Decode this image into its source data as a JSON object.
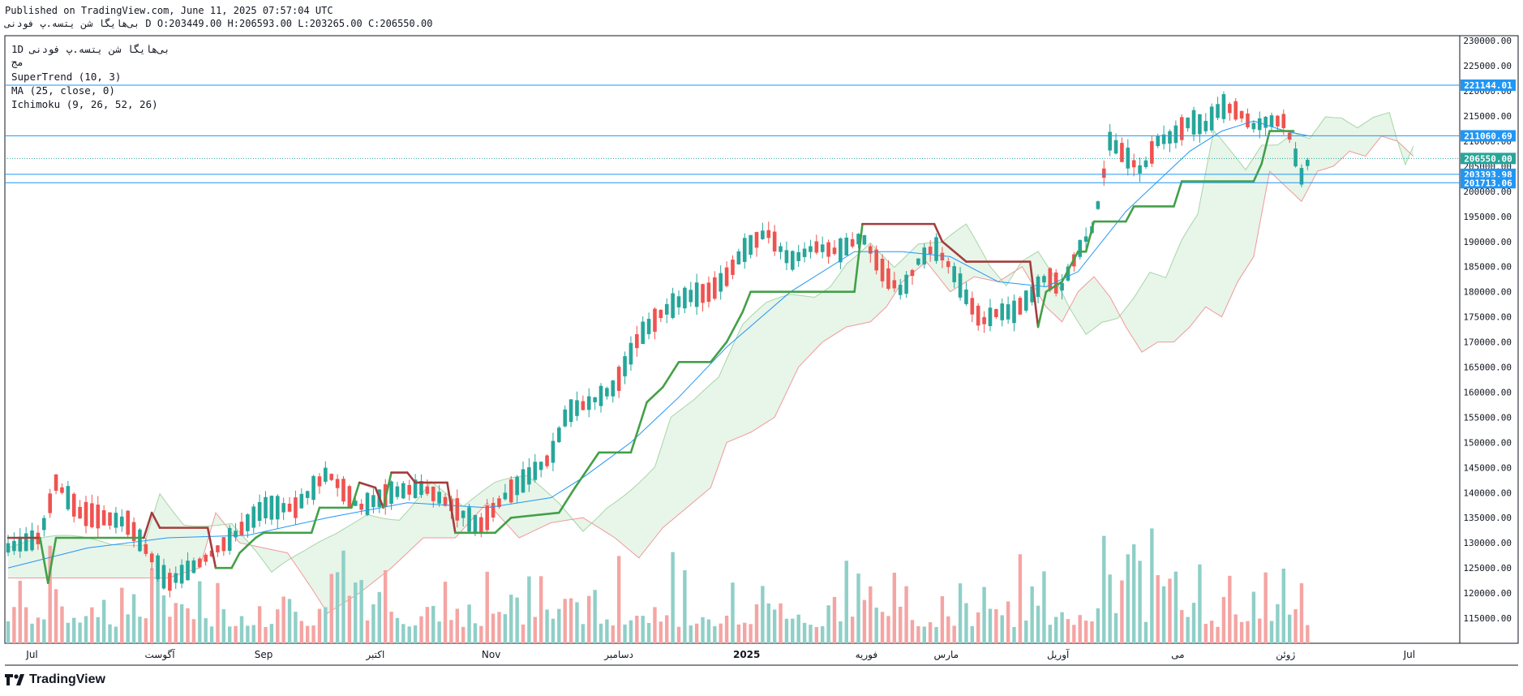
{
  "header": {
    "published": "Published on TradingView.com, June 11, 2025 07:57:04 UTC",
    "symbol": "بی‌هایگا شن یتسه.پ فودنی",
    "ohlc": "D O:203449.00 H:206593.00 L:203265.00 C:206550.00"
  },
  "legend": {
    "title": "1D  بی‌هایگا شن یتسه.پ فودنی",
    "sub": "مج",
    "ind1": "SuperTrend (10, 3)",
    "ind2": "MA (25, close, 0)",
    "ind3": "Ichimoku (9, 26, 52, 26)"
  },
  "brand": {
    "name": "TradingView"
  },
  "colors": {
    "up": "#26a69a",
    "down": "#ef5350",
    "supertrend_up": "#43a047",
    "supertrend_down": "#a33d3d",
    "ma": "#2196f3",
    "hline": "#2196f3",
    "cloud_up": "#e8f5e9",
    "cloud_down": "#fce4e4",
    "last": "#26a69a"
  },
  "chart_data": {
    "type": "candlestick",
    "title": "بی‌هایگا شن یتسه.پ فودنی",
    "timeframe": "1D",
    "ylim": [
      110000,
      231000
    ],
    "y_ticks": [
      230000,
      225000,
      220000,
      215000,
      210000,
      205000,
      200000,
      195000,
      190000,
      185000,
      180000,
      175000,
      170000,
      165000,
      160000,
      155000,
      150000,
      145000,
      140000,
      135000,
      130000,
      125000,
      120000,
      115000
    ],
    "x_labels": [
      "Jul",
      "آگوست",
      "Sep",
      "اکتبر",
      "Nov",
      "دسامبر",
      "2025",
      "فوریه",
      "مارس",
      "آوریل",
      "می",
      "ژوئن",
      "Jul"
    ],
    "x_label_days": [
      6,
      38,
      64,
      92,
      121,
      153,
      185,
      215,
      235,
      263,
      293,
      320,
      351
    ],
    "price_lines": [
      {
        "label": "221144.01",
        "value": 221144.01
      },
      {
        "label": "211060.69",
        "value": 211060.69
      },
      {
        "label": "203393.98",
        "value": 203393.98
      },
      {
        "label": "201713.06",
        "value": 201713.06
      }
    ],
    "last_price": {
      "label": "206550.00",
      "value": 206550.0
    },
    "ohlc_points": [
      [
        0,
        129000
      ],
      [
        8,
        131000
      ],
      [
        12,
        142000
      ],
      [
        18,
        136000
      ],
      [
        30,
        134000
      ],
      [
        36,
        127000
      ],
      [
        40,
        122000
      ],
      [
        48,
        126000
      ],
      [
        56,
        131000
      ],
      [
        64,
        137000
      ],
      [
        72,
        137000
      ],
      [
        80,
        144000
      ],
      [
        88,
        137000
      ],
      [
        96,
        140000
      ],
      [
        104,
        141000
      ],
      [
        112,
        137000
      ],
      [
        118,
        133000
      ],
      [
        124,
        139000
      ],
      [
        130,
        143000
      ],
      [
        136,
        147000
      ],
      [
        140,
        156000
      ],
      [
        146,
        158000
      ],
      [
        152,
        161000
      ],
      [
        158,
        171000
      ],
      [
        164,
        176000
      ],
      [
        170,
        179000
      ],
      [
        176,
        180000
      ],
      [
        180,
        183000
      ],
      [
        184,
        188000
      ],
      [
        190,
        192000
      ],
      [
        196,
        186000
      ],
      [
        202,
        189000
      ],
      [
        208,
        188000
      ],
      [
        214,
        191000
      ],
      [
        220,
        183000
      ],
      [
        224,
        180000
      ],
      [
        228,
        186000
      ],
      [
        232,
        189000
      ],
      [
        236,
        185000
      ],
      [
        240,
        179000
      ],
      [
        244,
        174000
      ],
      [
        248,
        176000
      ],
      [
        252,
        176000
      ],
      [
        256,
        179000
      ],
      [
        260,
        183000
      ],
      [
        264,
        181000
      ],
      [
        268,
        188000
      ],
      [
        272,
        193000
      ],
      [
        276,
        210000
      ],
      [
        280,
        207000
      ],
      [
        284,
        204000
      ],
      [
        288,
        210000
      ],
      [
        292,
        211000
      ],
      [
        296,
        214000
      ],
      [
        300,
        213000
      ],
      [
        304,
        217000
      ],
      [
        308,
        216000
      ],
      [
        312,
        213000
      ],
      [
        316,
        214000
      ],
      [
        320,
        214000
      ],
      [
        322,
        208000
      ],
      [
        324,
        203000
      ],
      [
        326,
        206550
      ]
    ],
    "supertrend": [
      [
        0,
        131000
      ],
      [
        8,
        131000
      ],
      [
        10,
        122000
      ],
      [
        12,
        131000
      ],
      [
        34,
        131000
      ],
      [
        36,
        136000
      ],
      [
        38,
        133000
      ],
      [
        50,
        133000
      ],
      [
        52,
        125000
      ],
      [
        56,
        125000
      ],
      [
        58,
        128000
      ],
      [
        62,
        131000
      ],
      [
        64,
        132000
      ],
      [
        76,
        132000
      ],
      [
        78,
        137000
      ],
      [
        86,
        137000
      ],
      [
        88,
        142000
      ],
      [
        92,
        141000
      ],
      [
        94,
        137000
      ],
      [
        96,
        144000
      ],
      [
        100,
        144000
      ],
      [
        102,
        142000
      ],
      [
        110,
        142000
      ],
      [
        112,
        132000
      ],
      [
        122,
        132000
      ],
      [
        126,
        135000
      ],
      [
        138,
        136000
      ],
      [
        142,
        141000
      ],
      [
        148,
        148000
      ],
      [
        156,
        148000
      ],
      [
        160,
        158000
      ],
      [
        164,
        161000
      ],
      [
        168,
        166000
      ],
      [
        176,
        166000
      ],
      [
        180,
        170000
      ],
      [
        184,
        176000
      ],
      [
        186,
        180000
      ],
      [
        212,
        180000
      ],
      [
        214,
        193500
      ],
      [
        232,
        193500
      ],
      [
        234,
        190000
      ],
      [
        240,
        186000
      ],
      [
        256,
        186000
      ],
      [
        258,
        173000
      ],
      [
        260,
        180000
      ],
      [
        264,
        182000
      ],
      [
        268,
        188000
      ],
      [
        270,
        188000
      ],
      [
        272,
        194000
      ],
      [
        280,
        194000
      ],
      [
        282,
        197000
      ],
      [
        292,
        197000
      ],
      [
        294,
        202000
      ],
      [
        304,
        202000
      ],
      [
        312,
        202000
      ],
      [
        314,
        205500
      ],
      [
        316,
        212000
      ],
      [
        322,
        212000
      ]
    ],
    "ma25": [
      [
        0,
        125000
      ],
      [
        20,
        129000
      ],
      [
        40,
        131000
      ],
      [
        60,
        131500
      ],
      [
        80,
        135000
      ],
      [
        100,
        138000
      ],
      [
        120,
        137000
      ],
      [
        136,
        139000
      ],
      [
        144,
        143000
      ],
      [
        156,
        150000
      ],
      [
        168,
        159000
      ],
      [
        180,
        169000
      ],
      [
        196,
        180000
      ],
      [
        212,
        188000
      ],
      [
        224,
        188000
      ],
      [
        236,
        187000
      ],
      [
        248,
        182000
      ],
      [
        260,
        181000
      ],
      [
        268,
        184000
      ],
      [
        280,
        196000
      ],
      [
        288,
        202000
      ],
      [
        296,
        208000
      ],
      [
        304,
        212000
      ],
      [
        312,
        214000
      ],
      [
        320,
        212000
      ],
      [
        326,
        211000
      ]
    ],
    "volume_note": "volume histogram bars at bottom in same up/down colors"
  }
}
